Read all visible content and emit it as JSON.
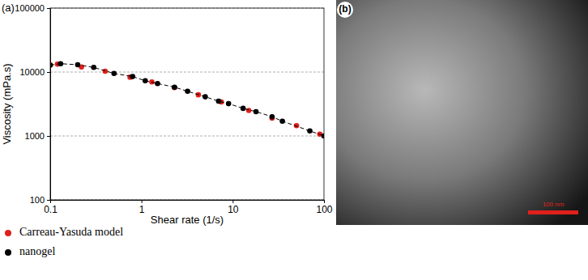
{
  "chart_data": {
    "type": "scatter",
    "x_label": "Shear rate (1/s)",
    "y_label": "Viscosity (mPa.s)",
    "annotations": [
      "(a)",
      "(b)",
      "100 nm"
    ],
    "log": true,
    "grid": true,
    "legend": "bottom-left",
    "xlim": [
      0.1,
      100
    ],
    "ylim": [
      100,
      100000
    ],
    "xticks": [
      0.1,
      1,
      10,
      100
    ],
    "yticks": [
      100,
      1000,
      10000,
      100000
    ],
    "series": [
      {
        "name": "Carreau-Yasuda model",
        "color": "#e0201b",
        "type": "scatter",
        "marker": "circle",
        "x": [
          0.1,
          0.12,
          0.22,
          0.4,
          0.75,
          1.3,
          2.3,
          4.2,
          7.5,
          15,
          27,
          50,
          90
        ],
        "values": [
          12900,
          13300,
          12000,
          10300,
          8300,
          7000,
          5700,
          4400,
          3400,
          2500,
          1900,
          1450,
          1070
        ]
      },
      {
        "name": "nanogel",
        "color": "#000000",
        "type": "line",
        "marker": "circle",
        "line_style": "dashed",
        "x": [
          0.1,
          0.13,
          0.2,
          0.3,
          0.5,
          0.8,
          1.1,
          1.5,
          2.3,
          3.2,
          5,
          7,
          9,
          13,
          18,
          27,
          35,
          70,
          100
        ],
        "values": [
          12800,
          13500,
          13000,
          11800,
          9500,
          8500,
          7300,
          6600,
          5800,
          5000,
          4100,
          3500,
          3200,
          2700,
          2400,
          2000,
          1700,
          1200,
          1000
        ]
      }
    ]
  }
}
